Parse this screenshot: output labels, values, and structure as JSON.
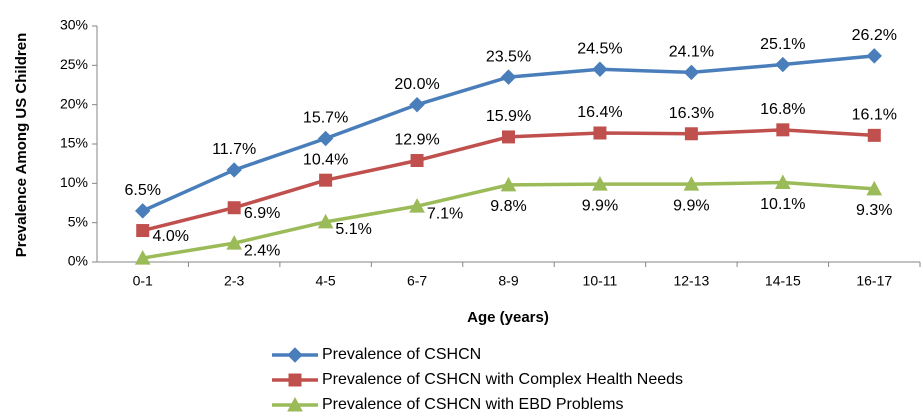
{
  "chart_data": {
    "type": "line",
    "x_label": "Age (years)",
    "y_label": "Prevalence Among US Children",
    "categories": [
      "0-1",
      "2-3",
      "4-5",
      "6-7",
      "8-9",
      "10-11",
      "12-13",
      "14-15",
      "16-17"
    ],
    "series": [
      {
        "name": "Prevalence of CSHCN",
        "color": "#4a7ebb",
        "marker": "diamond",
        "values": [
          6.5,
          11.7,
          15.7,
          20.0,
          23.5,
          24.5,
          24.1,
          25.1,
          26.2
        ],
        "value_labels": [
          "6.5%",
          "11.7%",
          "15.7%",
          "20.0%",
          "23.5%",
          "24.5%",
          "24.1%",
          "25.1%",
          "26.2%"
        ]
      },
      {
        "name": "Prevalence of CSHCN with Complex Health Needs",
        "color": "#c0504d",
        "marker": "square",
        "values": [
          4.0,
          6.9,
          10.4,
          12.9,
          15.9,
          16.4,
          16.3,
          16.8,
          16.1
        ],
        "value_labels": [
          "4.0%",
          "6.9%",
          "10.4%",
          "12.9%",
          "15.9%",
          "16.4%",
          "16.3%",
          "16.8%",
          "16.1%"
        ]
      },
      {
        "name": "Prevalence of CSHCN with EBD Problems",
        "color": "#9bbb59",
        "marker": "triangle",
        "values": [
          0.5,
          2.4,
          5.1,
          7.1,
          9.8,
          9.9,
          9.9,
          10.1,
          9.3
        ],
        "value_labels": [
          null,
          "2.4%",
          "5.1%",
          "7.1%",
          "9.8%",
          "9.9%",
          "9.9%",
          "10.1%",
          "9.3%"
        ]
      }
    ],
    "ylim": [
      0,
      30
    ],
    "yticks": [
      {
        "value": 0,
        "label": "0%"
      },
      {
        "value": 5,
        "label": "5%"
      },
      {
        "value": 10,
        "label": "10%"
      },
      {
        "value": 15,
        "label": "15%"
      },
      {
        "value": 20,
        "label": "20%"
      },
      {
        "value": 25,
        "label": "25%"
      },
      {
        "value": 30,
        "label": "30%"
      }
    ],
    "grid": false,
    "legend": "bottom"
  }
}
